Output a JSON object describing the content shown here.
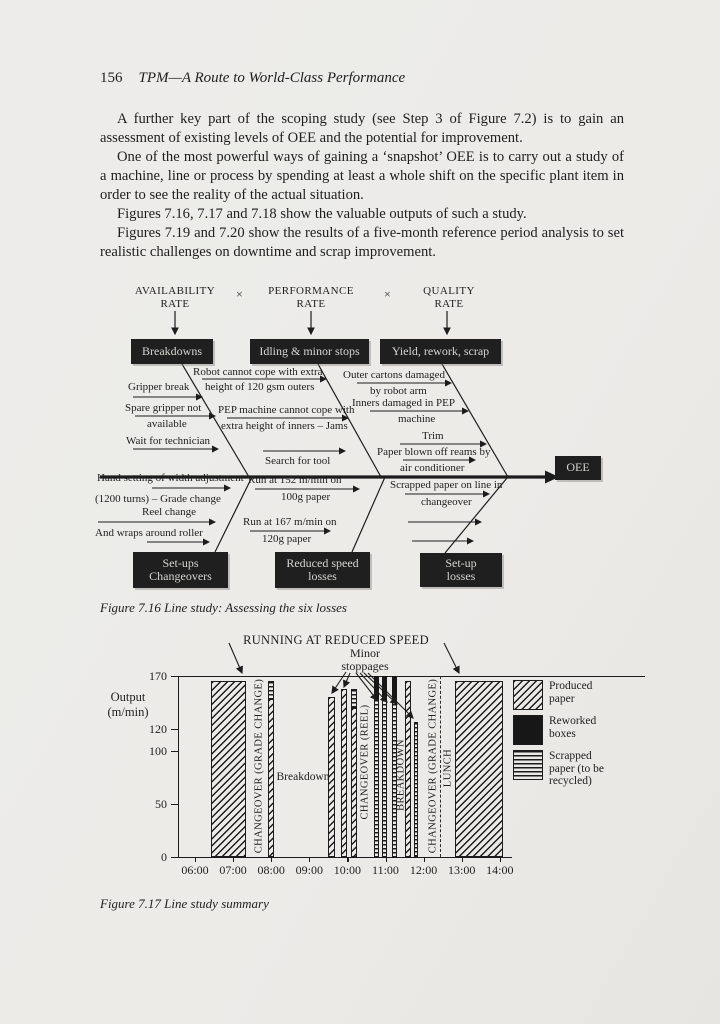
{
  "page": {
    "page_number": "156",
    "running_header": "TPM—A Route to World-Class Performance",
    "paragraphs": [
      "A further key part of the scoping study (see Step 3 of Figure 7.2) is to gain an assessment of existing levels of OEE and the potential for improvement.",
      "One of the most powerful ways of gaining a ‘snapshot’ OEE is to carry out a study of a machine, line or process by spending at least a whole shift on the specific plant item in order to see the reality of the actual situation.",
      "Figures 7.16, 7.17 and 7.18 show the valuable outputs of such a study.",
      "Figures 7.19 and 7.20 show the results of a five-month reference period analysis to set realistic challenges on downtime and scrap improvement."
    ]
  },
  "fishbone": {
    "caption": "Figure 7.16 Line study: Assessing the six losses",
    "times_symbol": "×",
    "headers": [
      {
        "line1": "AVAILABILITY",
        "line2": "RATE"
      },
      {
        "line1": "PERFORMANCE",
        "line2": "RATE"
      },
      {
        "line1": "QUALITY",
        "line2": "RATE"
      }
    ],
    "top_boxes": [
      "Breakdowns",
      "Idling & minor stops",
      "Yield, rework, scrap"
    ],
    "bottom_boxes": [
      {
        "line1": "Set-ups",
        "line2": "Changeovers"
      },
      {
        "line1": "Reduced speed",
        "line2": "losses"
      },
      {
        "line1": "Set-up",
        "line2": "losses"
      }
    ],
    "oee": "OEE",
    "causes": {
      "breakdowns": [
        {
          "line1": "Gripper break"
        },
        {
          "line1": "Spare gripper not",
          "line2": "available"
        },
        {
          "line1": "Wait for technician"
        }
      ],
      "idling": [
        {
          "line1": "Robot cannot cope with extra",
          "line2": "height of 120 gsm outers"
        },
        {
          "line1": "PEP machine cannot cope with",
          "line2": "extra height of inners – Jams"
        },
        {
          "line1": "Search for tool"
        }
      ],
      "quality": [
        {
          "line1": "Outer cartons damaged",
          "line2": "by robot arm"
        },
        {
          "line1": "Inners damaged in PEP",
          "line2": "machine"
        },
        {
          "line1": "Trim"
        },
        {
          "line1": "Paper blown off reams by",
          "line2": "air conditioner"
        }
      ],
      "setups": [
        {
          "line1": "Hand setting of width adjustment",
          "line2": "(1200 turns) – Grade change"
        },
        {
          "line1": "Reel change"
        },
        {
          "line1": "And wraps around roller"
        }
      ],
      "reduced_speed": [
        {
          "line1": "Run at 152 m/min on",
          "line2": "100g paper"
        },
        {
          "line1": "Run at 167 m/min on",
          "line2": "120g paper"
        }
      ],
      "setup_losses": [
        {
          "line1": "Scrapped paper on line in",
          "line2": "changeover"
        }
      ]
    }
  },
  "chart_data": {
    "type": "bar",
    "title": "RUNNING AT REDUCED SPEED",
    "minor_label": {
      "line1": "Minor",
      "line2": "stoppages"
    },
    "ylabel": {
      "line1": "Output",
      "line2": "(m/min)"
    },
    "caption": "Figure 7.17 Line study summary",
    "ylim": [
      0,
      170
    ],
    "y_ticks": [
      0,
      50,
      100,
      120,
      170
    ],
    "x_ticks": [
      "06:00",
      "07:00",
      "08:00",
      "09:00",
      "10:00",
      "11:00",
      "12:00",
      "13:00",
      "14:00"
    ],
    "bars": [
      {
        "start": "06:25",
        "end": "07:20",
        "segments": [
          {
            "type": "produced",
            "from": 0,
            "to": 165
          }
        ]
      },
      {
        "start": "07:55",
        "end": "08:05",
        "segments": [
          {
            "type": "produced",
            "from": 0,
            "to": 148
          },
          {
            "type": "scrapped",
            "from": 148,
            "to": 165
          }
        ]
      },
      {
        "start": "09:30",
        "end": "09:40",
        "segments": [
          {
            "type": "produced",
            "from": 0,
            "to": 150
          }
        ]
      },
      {
        "start": "09:50",
        "end": "10:00",
        "segments": [
          {
            "type": "produced",
            "from": 0,
            "to": 158
          }
        ]
      },
      {
        "start": "10:05",
        "end": "10:15",
        "segments": [
          {
            "type": "produced",
            "from": 0,
            "to": 140
          },
          {
            "type": "scrapped",
            "from": 140,
            "to": 158
          }
        ]
      },
      {
        "start": "10:42",
        "end": "10:50",
        "segments": [
          {
            "type": "scrapped",
            "from": 0,
            "to": 148
          },
          {
            "type": "reworked",
            "from": 148,
            "to": 170
          }
        ]
      },
      {
        "start": "10:55",
        "end": "11:03",
        "segments": [
          {
            "type": "scrapped",
            "from": 0,
            "to": 148
          },
          {
            "type": "reworked",
            "from": 148,
            "to": 170
          }
        ]
      },
      {
        "start": "11:10",
        "end": "11:18",
        "segments": [
          {
            "type": "scrapped",
            "from": 0,
            "to": 148
          },
          {
            "type": "reworked",
            "from": 148,
            "to": 170
          }
        ]
      },
      {
        "start": "11:30",
        "end": "11:40",
        "segments": [
          {
            "type": "produced",
            "from": 0,
            "to": 165
          }
        ]
      },
      {
        "start": "11:45",
        "end": "11:52",
        "segments": [
          {
            "type": "scrapped",
            "from": 0,
            "to": 127
          }
        ]
      },
      {
        "start": "12:50",
        "end": "14:05",
        "segments": [
          {
            "type": "produced",
            "from": 0,
            "to": 165
          }
        ]
      }
    ],
    "events": [
      {
        "label": "CHANGEOVER (GRADE CHANGE)",
        "time": "07:40",
        "orientation": "vertical",
        "y": 136
      },
      {
        "label": "Breakdown",
        "time": "08:50",
        "orientation": "horizontal",
        "y": 147
      },
      {
        "label": "CHANGEOVER (REEL)",
        "time": "10:27",
        "orientation": "vertical",
        "y": 132
      },
      {
        "label": "BREAKDOWN",
        "time": "11:24",
        "orientation": "vertical",
        "y": 145
      },
      {
        "label": "CHANGEOVER (GRADE CHANGE)",
        "time": "12:15",
        "orientation": "vertical",
        "y": 136,
        "marker": "dashed-line"
      },
      {
        "label": "LUNCH",
        "time": "12:38",
        "orientation": "vertical",
        "y": 138
      }
    ],
    "legend": [
      {
        "key": "produced",
        "label": "Produced paper"
      },
      {
        "key": "reworked",
        "label": "Reworked boxes"
      },
      {
        "key": "scrapped",
        "label": "Scrapped paper (to be recycled)"
      }
    ]
  }
}
